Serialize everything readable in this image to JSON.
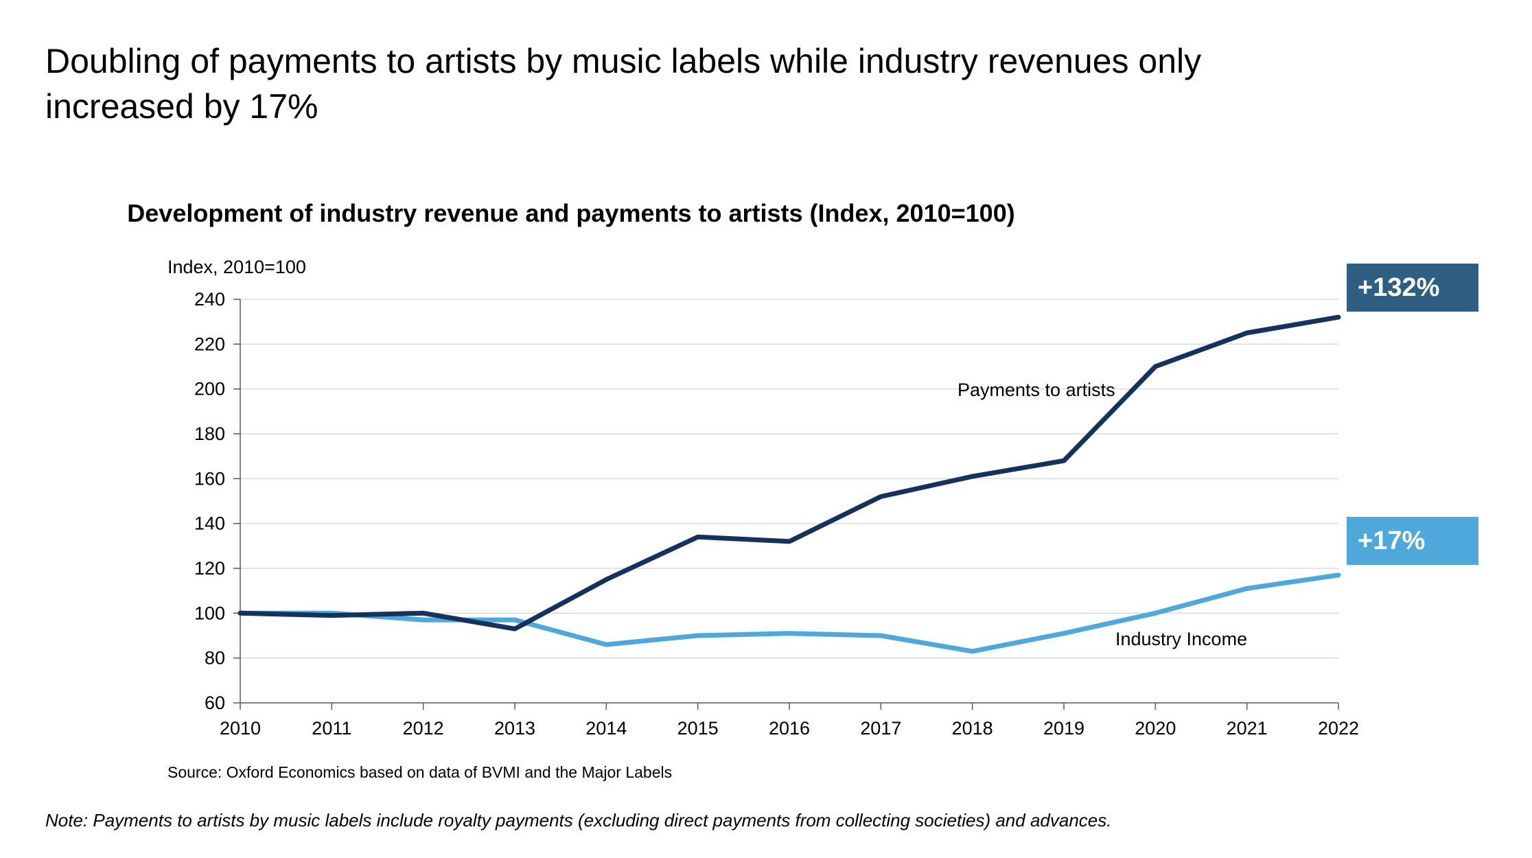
{
  "headline": "Doubling of payments to artists by music labels while industry revenues only increased by 17%",
  "source": "Source: Oxford Economics based on data of BVMI and the Major Labels",
  "note": "Note: Payments to artists by music labels include royalty payments (excluding direct payments from collecting societies) and advances.",
  "badges": {
    "payments": {
      "text": "+132%",
      "color": "#2e5f82"
    },
    "income": {
      "text": "+17%",
      "color": "#4fa8dc"
    }
  },
  "chart_data": {
    "type": "line",
    "title": "Development of industry revenue and payments to artists (Index, 2010=100)",
    "ylabel": "Index, 2010=100",
    "xlabel": "",
    "ylim": [
      60,
      240
    ],
    "yticks": [
      60,
      80,
      100,
      120,
      140,
      160,
      180,
      200,
      220,
      240
    ],
    "grid": true,
    "x": [
      2010,
      2011,
      2012,
      2013,
      2014,
      2015,
      2016,
      2017,
      2018,
      2019,
      2020,
      2021,
      2022
    ],
    "series": [
      {
        "name": "Payments to artists",
        "color": "#16325c",
        "values": [
          100,
          99,
          100,
          93,
          115,
          134,
          132,
          152,
          161,
          168,
          210,
          225,
          232
        ]
      },
      {
        "name": "Industry Income",
        "color": "#4fa8dc",
        "values": [
          100,
          100,
          97,
          97,
          86,
          90,
          91,
          90,
          83,
          91,
          100,
          111,
          117
        ]
      }
    ]
  }
}
